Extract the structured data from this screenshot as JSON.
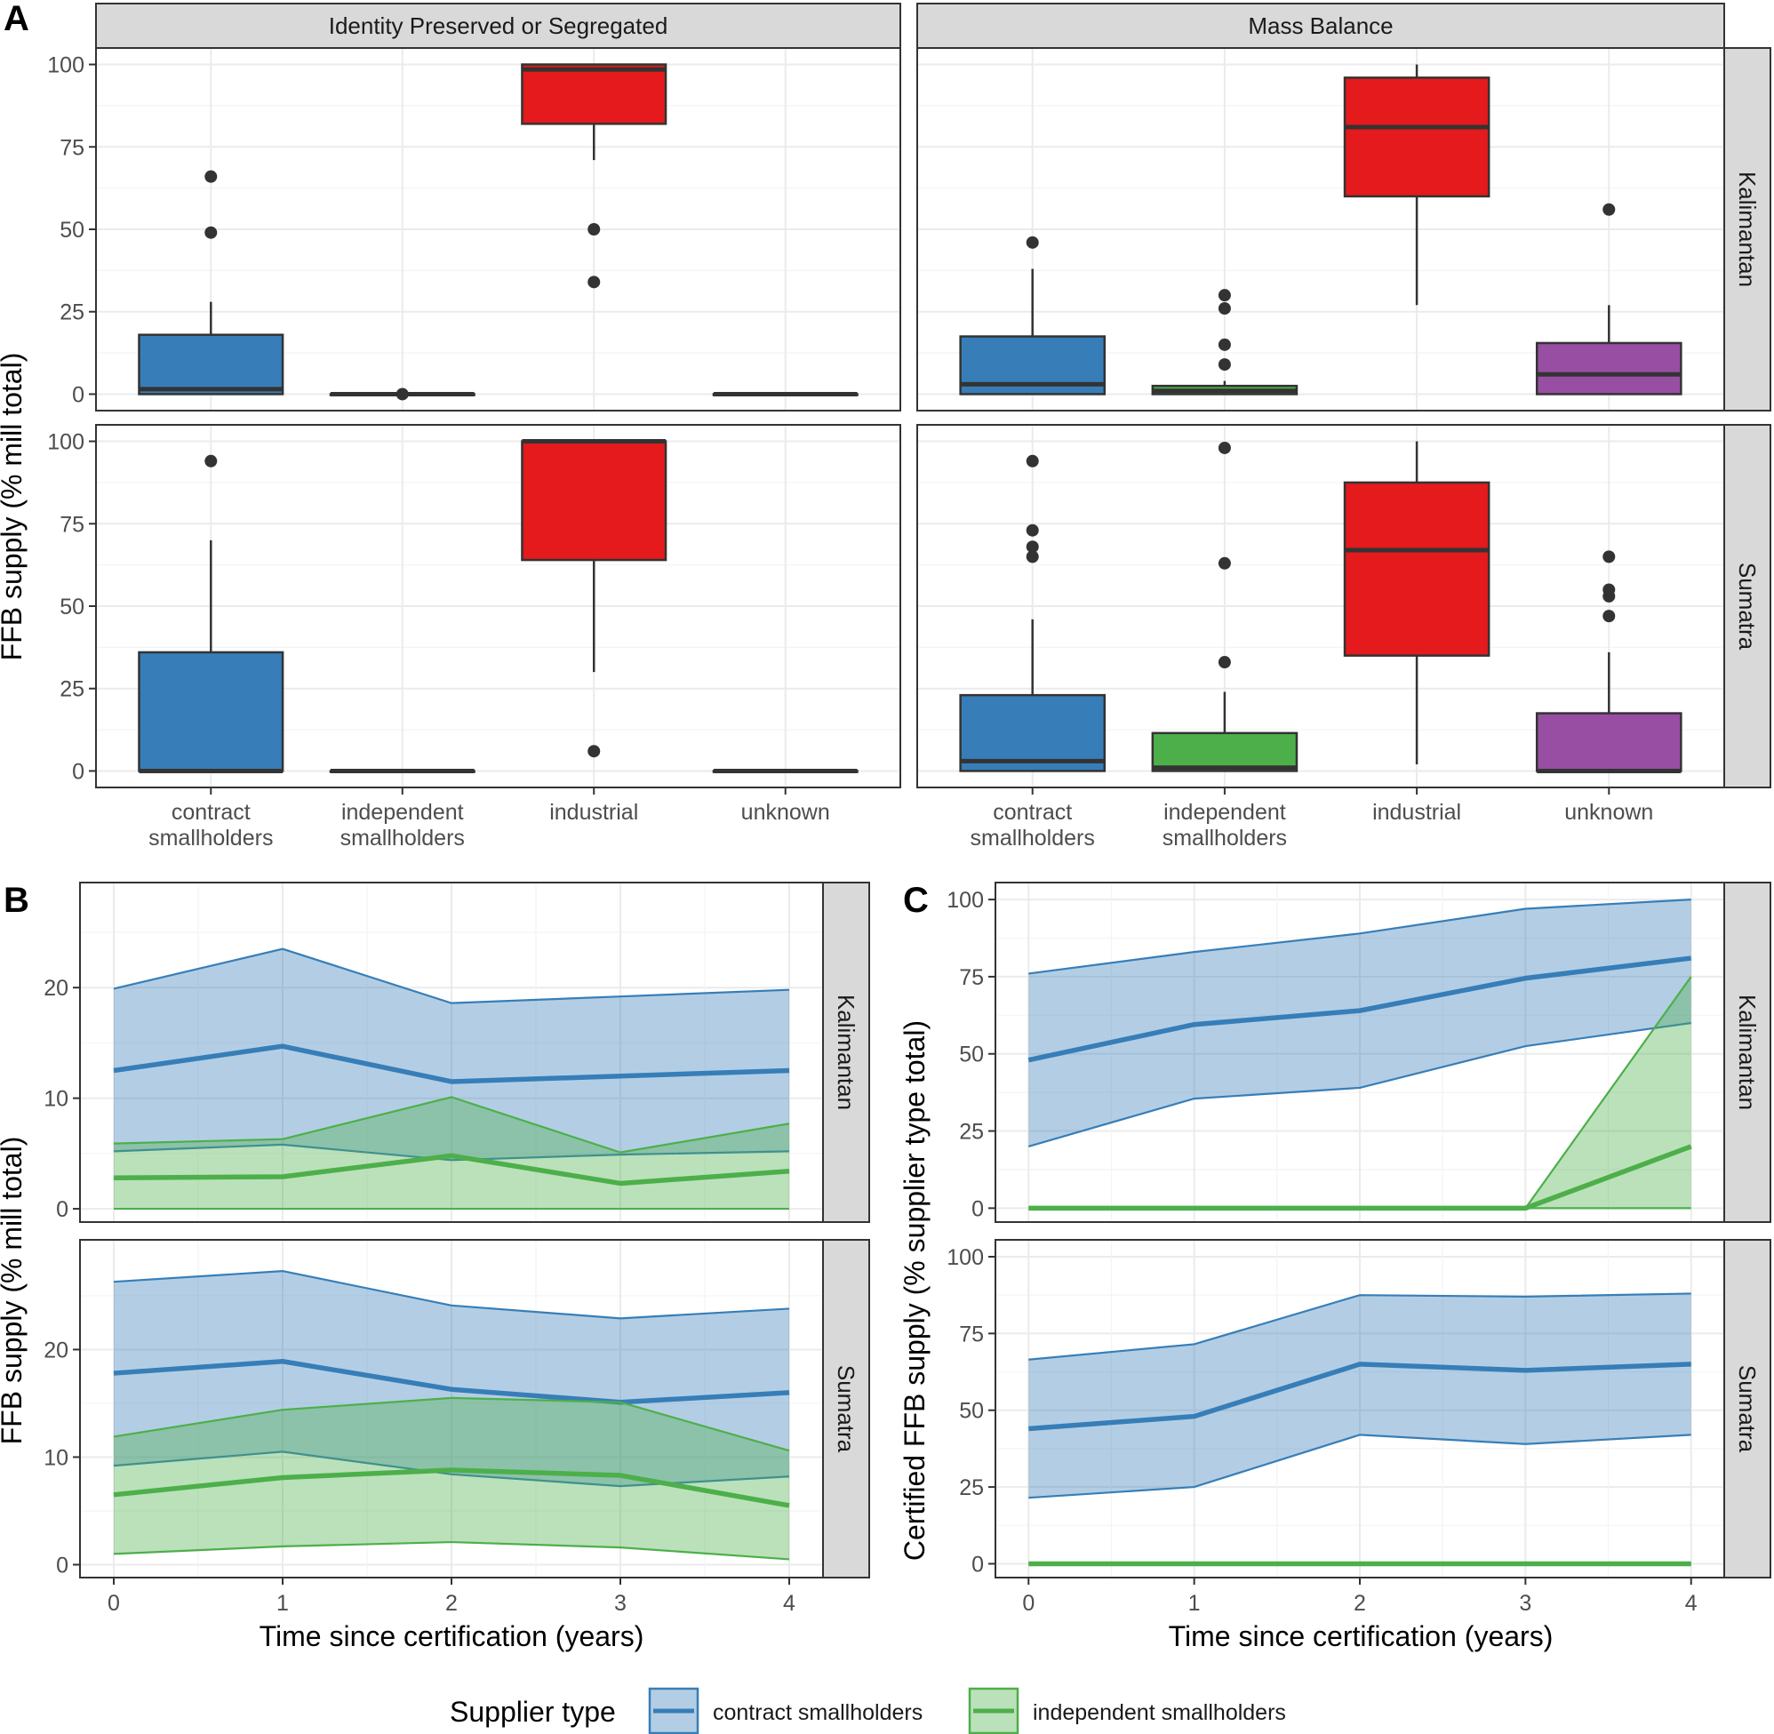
{
  "colors": {
    "contract": "#377eb8",
    "independent": "#4daf4a",
    "industrial": "#e41a1c",
    "unknown": "#984ea3"
  },
  "chart_data": [
    {
      "tag": "A",
      "type": "box",
      "ylabel": "FFB supply (% mill total)",
      "ylim": [
        -5,
        105
      ],
      "yticks": [
        0,
        25,
        50,
        75,
        100
      ],
      "ytick_labels": [
        "0",
        "25",
        "50",
        "75",
        "100"
      ],
      "categories": [
        "contract smallholders",
        "independent smallholders",
        "industrial",
        "unknown"
      ],
      "category_labels": [
        [
          "contract",
          "smallholders"
        ],
        [
          "independent",
          "smallholders"
        ],
        [
          "industrial"
        ],
        [
          "unknown"
        ]
      ],
      "columns": [
        "Identity Preserved or Segregated",
        "Mass Balance"
      ],
      "rows": [
        "Kalimantan",
        "Sumatra"
      ],
      "panels": [
        {
          "column": "Identity Preserved or Segregated",
          "row": "Kalimantan",
          "boxes": [
            {
              "category": "contract smallholders",
              "q1": 0,
              "median": 1.5,
              "q3": 18,
              "whisker_low": 0,
              "whisker_high": 28,
              "outliers": [
                49,
                66
              ]
            },
            {
              "category": "independent smallholders",
              "q1": 0,
              "median": 0,
              "q3": 0,
              "whisker_low": 0,
              "whisker_high": 0,
              "outliers": [
                0
              ]
            },
            {
              "category": "industrial",
              "q1": 82,
              "median": 98.5,
              "q3": 100,
              "whisker_low": 71,
              "whisker_high": 100,
              "outliers": [
                50,
                34
              ]
            },
            {
              "category": "unknown",
              "q1": 0,
              "median": 0,
              "q3": 0,
              "whisker_low": 0,
              "whisker_high": 0,
              "outliers": []
            }
          ]
        },
        {
          "column": "Mass Balance",
          "row": "Kalimantan",
          "boxes": [
            {
              "category": "contract smallholders",
              "q1": 0,
              "median": 3,
              "q3": 17.5,
              "whisker_low": 0,
              "whisker_high": 38,
              "outliers": [
                46
              ]
            },
            {
              "category": "independent smallholders",
              "q1": 0,
              "median": 1,
              "q3": 2.5,
              "whisker_low": 0,
              "whisker_high": 4,
              "outliers": [
                9,
                15,
                26,
                30
              ]
            },
            {
              "category": "industrial",
              "q1": 60,
              "median": 81,
              "q3": 96,
              "whisker_low": 27,
              "whisker_high": 100,
              "outliers": []
            },
            {
              "category": "unknown",
              "q1": 0,
              "median": 6,
              "q3": 15.5,
              "whisker_low": 0,
              "whisker_high": 27,
              "outliers": [
                56
              ]
            }
          ]
        },
        {
          "column": "Identity Preserved or Segregated",
          "row": "Sumatra",
          "boxes": [
            {
              "category": "contract smallholders",
              "q1": 0,
              "median": 0,
              "q3": 36,
              "whisker_low": 0,
              "whisker_high": 70,
              "outliers": [
                94
              ]
            },
            {
              "category": "independent smallholders",
              "q1": 0,
              "median": 0,
              "q3": 0,
              "whisker_low": 0,
              "whisker_high": 0,
              "outliers": []
            },
            {
              "category": "industrial",
              "q1": 64,
              "median": 100,
              "q3": 100,
              "whisker_low": 30,
              "whisker_high": 100,
              "outliers": [
                6
              ]
            },
            {
              "category": "unknown",
              "q1": 0,
              "median": 0,
              "q3": 0,
              "whisker_low": 0,
              "whisker_high": 0,
              "outliers": []
            }
          ]
        },
        {
          "column": "Mass Balance",
          "row": "Sumatra",
          "boxes": [
            {
              "category": "contract smallholders",
              "q1": 0,
              "median": 3,
              "q3": 23,
              "whisker_low": 0,
              "whisker_high": 46,
              "outliers": [
                65,
                68,
                73,
                94
              ]
            },
            {
              "category": "independent smallholders",
              "q1": 0,
              "median": 1,
              "q3": 11.5,
              "whisker_low": 0,
              "whisker_high": 24,
              "outliers": [
                33,
                63,
                98
              ]
            },
            {
              "category": "industrial",
              "q1": 35,
              "median": 67,
              "q3": 87.5,
              "whisker_low": 2,
              "whisker_high": 100,
              "outliers": []
            },
            {
              "category": "unknown",
              "q1": 0,
              "median": 0,
              "q3": 17.5,
              "whisker_low": 0,
              "whisker_high": 36,
              "outliers": [
                47,
                53,
                55,
                65
              ]
            }
          ]
        }
      ]
    },
    {
      "tag": "B",
      "type": "line-ribbon",
      "xlabel": "Time since certification (years)",
      "ylabel": "FFB supply (% mill total)",
      "x": [
        0,
        1,
        2,
        3,
        4
      ],
      "xticks": [
        0,
        1,
        2,
        3,
        4
      ],
      "xlim": [
        -0.2,
        4.2
      ],
      "yticks": [
        0,
        10,
        20
      ],
      "panels": [
        {
          "row": "Kalimantan",
          "ylim": [
            -1.2,
            29.5
          ],
          "series": [
            {
              "name": "contract smallholders",
              "mean": [
                12.5,
                14.7,
                11.5,
                12.0,
                12.5
              ],
              "lower": [
                5.2,
                5.8,
                4.4,
                4.9,
                5.2
              ],
              "upper": [
                19.9,
                23.5,
                18.6,
                19.2,
                19.8
              ]
            },
            {
              "name": "independent smallholders",
              "mean": [
                2.8,
                2.9,
                4.8,
                2.3,
                3.4
              ],
              "lower": [
                0,
                0,
                0,
                0,
                0
              ],
              "upper": [
                5.9,
                6.3,
                10.1,
                5.1,
                7.7
              ]
            }
          ]
        },
        {
          "row": "Sumatra",
          "ylim": [
            -1.2,
            30.2
          ],
          "series": [
            {
              "name": "contract smallholders",
              "mean": [
                17.8,
                18.9,
                16.3,
                15.1,
                16.0
              ],
              "lower": [
                9.2,
                10.5,
                8.4,
                7.3,
                8.2
              ],
              "upper": [
                26.3,
                27.3,
                24.1,
                22.9,
                23.8
              ]
            },
            {
              "name": "independent smallholders",
              "mean": [
                6.5,
                8.1,
                8.8,
                8.3,
                5.5
              ],
              "lower": [
                1.0,
                1.7,
                2.1,
                1.6,
                0.5
              ],
              "upper": [
                11.9,
                14.4,
                15.5,
                15.1,
                10.6
              ]
            }
          ]
        }
      ]
    },
    {
      "tag": "C",
      "type": "line-ribbon",
      "xlabel": "Time since certification (years)",
      "ylabel": "Certified FFB supply (% supplier type total)",
      "x": [
        0,
        1,
        2,
        3,
        4
      ],
      "xticks": [
        0,
        1,
        2,
        3,
        4
      ],
      "xlim": [
        -0.2,
        4.2
      ],
      "yticks": [
        0,
        25,
        50,
        75,
        100
      ],
      "panels": [
        {
          "row": "Kalimantan",
          "ylim": [
            -4.5,
            105.5
          ],
          "series": [
            {
              "name": "contract smallholders",
              "mean": [
                48,
                59.5,
                64,
                74.5,
                81
              ],
              "lower": [
                20,
                35.5,
                39,
                52.5,
                60
              ],
              "upper": [
                76,
                83,
                89,
                97,
                100
              ]
            },
            {
              "name": "independent smallholders",
              "mean": [
                0,
                0,
                0,
                0,
                20
              ],
              "lower": [
                0,
                0,
                0,
                0,
                0
              ],
              "upper": [
                0,
                0,
                0,
                0,
                75
              ]
            }
          ]
        },
        {
          "row": "Sumatra",
          "ylim": [
            -4.5,
            105.5
          ],
          "series": [
            {
              "name": "contract smallholders",
              "mean": [
                44,
                48,
                65,
                63,
                65
              ],
              "lower": [
                21.5,
                25,
                42,
                39,
                42
              ],
              "upper": [
                66.5,
                71.5,
                87.5,
                87,
                88
              ]
            },
            {
              "name": "independent smallholders",
              "mean": [
                0,
                0,
                0,
                0,
                0
              ],
              "lower": [
                0,
                0,
                0,
                0,
                0
              ],
              "upper": [
                0,
                0,
                0,
                0,
                0
              ]
            }
          ]
        }
      ]
    }
  ],
  "legend": {
    "title": "Supplier type",
    "items": [
      {
        "label": "contract smallholders",
        "key": "contract"
      },
      {
        "label": "independent smallholders",
        "key": "independent"
      }
    ]
  }
}
